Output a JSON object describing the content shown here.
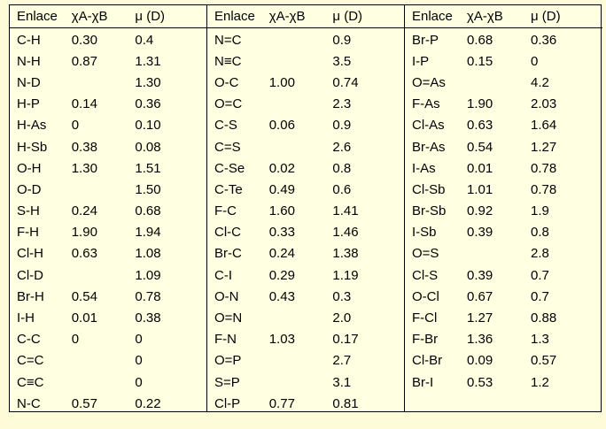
{
  "headers": {
    "bond": "Enlace",
    "diff": "χA-χB",
    "mu": "μ (D)"
  },
  "blocks": [
    [
      [
        "C-H",
        "0.30",
        "0.4"
      ],
      [
        "N-H",
        "0.87",
        "1.31"
      ],
      [
        "N-D",
        "",
        "1.30"
      ],
      [
        "H-P",
        "0.14",
        "0.36"
      ],
      [
        "H-As",
        "0",
        "0.10"
      ],
      [
        "H-Sb",
        "0.38",
        "0.08"
      ],
      [
        "O-H",
        "1.30",
        "1.51"
      ],
      [
        "O-D",
        "",
        "1.50"
      ],
      [
        "S-H",
        "0.24",
        "0.68"
      ],
      [
        "F-H",
        "1.90",
        "1.94"
      ],
      [
        "Cl-H",
        "0.63",
        "1.08"
      ],
      [
        "Cl-D",
        "",
        "1.09"
      ],
      [
        "Br-H",
        "0.54",
        "0.78"
      ],
      [
        "I-H",
        "0.01",
        "0.38"
      ],
      [
        "C-C",
        "0",
        "0"
      ],
      [
        "C=C",
        "",
        "0"
      ],
      [
        "C≡C",
        "",
        "0"
      ],
      [
        "N-C",
        "0.57",
        "0.22"
      ]
    ],
    [
      [
        "N=C",
        "",
        "0.9"
      ],
      [
        "N≡C",
        "",
        "3.5"
      ],
      [
        "O-C",
        "1.00",
        "0.74"
      ],
      [
        "O=C",
        "",
        "2.3"
      ],
      [
        "C-S",
        "0.06",
        "0.9"
      ],
      [
        "C=S",
        "",
        "2.6"
      ],
      [
        "C-Se",
        "0.02",
        "0.8"
      ],
      [
        "C-Te",
        "0.49",
        "0.6"
      ],
      [
        "F-C",
        "1.60",
        "1.41"
      ],
      [
        "Cl-C",
        "0.33",
        "1.46"
      ],
      [
        "Br-C",
        "0.24",
        "1.38"
      ],
      [
        "C-I",
        "0.29",
        "1.19"
      ],
      [
        "O-N",
        "0.43",
        "0.3"
      ],
      [
        "O=N",
        "",
        "2.0"
      ],
      [
        "F-N",
        "1.03",
        "0.17"
      ],
      [
        "O=P",
        "",
        "2.7"
      ],
      [
        "S=P",
        "",
        "3.1"
      ],
      [
        "Cl-P",
        "0.77",
        "0.81"
      ]
    ],
    [
      [
        "Br-P",
        "0.68",
        "0.36"
      ],
      [
        "I-P",
        "0.15",
        "0"
      ],
      [
        "O=As",
        "",
        "4.2"
      ],
      [
        "F-As",
        "1.90",
        "2.03"
      ],
      [
        "Cl-As",
        "0.63",
        "1.64"
      ],
      [
        "Br-As",
        "0.54",
        "1.27"
      ],
      [
        "I-As",
        "0.01",
        "0.78"
      ],
      [
        "Cl-Sb",
        "1.01",
        "0.78"
      ],
      [
        "Br-Sb",
        "0.92",
        "1.9"
      ],
      [
        "I-Sb",
        "0.39",
        "0.8"
      ],
      [
        "O=S",
        "",
        "2.8"
      ],
      [
        "Cl-S",
        "0.39",
        "0.7"
      ],
      [
        "O-Cl",
        "0.67",
        "0.7"
      ],
      [
        "F-Cl",
        "1.27",
        "0.88"
      ],
      [
        "F-Br",
        "1.36",
        "1.3"
      ],
      [
        "Cl-Br",
        "0.09",
        "0.57"
      ],
      [
        "Br-I",
        "0.53",
        "1.2"
      ]
    ]
  ],
  "colors": {
    "background": "#ffffe1",
    "page": "#fdfbd8",
    "border": "#000000"
  }
}
